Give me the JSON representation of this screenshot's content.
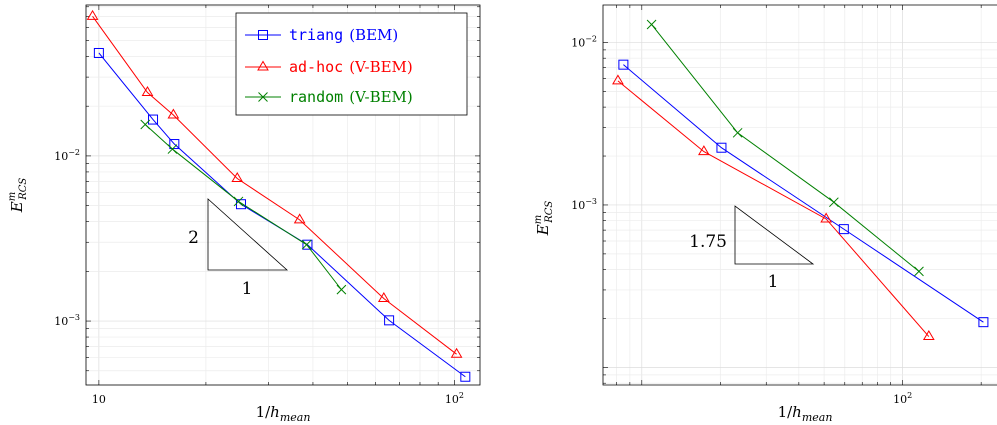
{
  "chart_data": [
    {
      "type": "line",
      "xscale": "log",
      "yscale": "log",
      "xlabel": "1/h_mean",
      "ylabel": "E^m_RCS",
      "xlim": [
        9.2,
        118
      ],
      "ylim": [
        0.00041,
        0.082
      ],
      "grid": true,
      "legend_position": "top-right",
      "x_tick_labels": [
        {
          "value": 10,
          "label": "10"
        },
        {
          "value": 100,
          "label": "10^2"
        }
      ],
      "y_tick_labels": [
        {
          "value": 0.01,
          "label": "10^-2"
        },
        {
          "value": 0.001,
          "label": "10^-3"
        }
      ],
      "series": [
        {
          "name": "triang",
          "name_suffix": "(BEM)",
          "color": "#0000ff",
          "marker": "square",
          "points": [
            [
              10,
              0.042
            ],
            [
              14.2,
              0.0166
            ],
            [
              16.3,
              0.0118
            ],
            [
              25.1,
              0.0051
            ],
            [
              38.6,
              0.0029
            ],
            [
              65.5,
              0.00101
            ],
            [
              107.3,
              0.00046
            ]
          ]
        },
        {
          "name": "ad-hoc",
          "name_suffix": "(V-BEM)",
          "color": "#ff0000",
          "marker": "triangle",
          "points": [
            [
              9.6,
              0.07
            ],
            [
              13.7,
              0.0242
            ],
            [
              16.2,
              0.0177
            ],
            [
              24.5,
              0.0073
            ],
            [
              36.7,
              0.0041
            ],
            [
              63.3,
              0.00137
            ],
            [
              101.4,
              0.00063
            ]
          ]
        },
        {
          "name": "random",
          "name_suffix": "(V-BEM)",
          "color": "#008000",
          "marker": "cross",
          "points": [
            [
              13.5,
              0.0155
            ],
            [
              16.1,
              0.011
            ],
            [
              24.7,
              0.0053
            ],
            [
              38.4,
              0.0029
            ],
            [
              48.1,
              0.00155
            ]
          ]
        }
      ],
      "annotations": [
        {
          "type": "slope-triangle",
          "vertical_label": "2",
          "horizontal_label": "1"
        }
      ]
    },
    {
      "type": "line",
      "xscale": "log",
      "yscale": "log",
      "xlabel": "1/h_mean",
      "ylabel": "E^m_RCS",
      "xlim": [
        7.1,
        230
      ],
      "ylim": [
        7.8e-05,
        0.017
      ],
      "grid": true,
      "x_tick_labels": [
        {
          "value": 100,
          "label": "10^2"
        }
      ],
      "y_tick_labels": [
        {
          "value": 0.01,
          "label": "10^-2"
        },
        {
          "value": 0.001,
          "label": "10^-3"
        }
      ],
      "series": [
        {
          "name": "triang",
          "color": "#0000ff",
          "marker": "square",
          "points": [
            [
              8.5,
              0.0073
            ],
            [
              20.2,
              0.00225
            ],
            [
              59.5,
              0.00071
            ],
            [
              204,
              0.00019
            ]
          ]
        },
        {
          "name": "ad-hoc",
          "color": "#ff0000",
          "marker": "triangle",
          "points": [
            [
              8.1,
              0.0058
            ],
            [
              17.3,
              0.00213
            ],
            [
              50.9,
              0.00082
            ],
            [
              126,
              0.000155
            ]
          ]
        },
        {
          "name": "random",
          "color": "#008000",
          "marker": "cross",
          "points": [
            [
              10.9,
              0.0129
            ],
            [
              23.3,
              0.00278
            ],
            [
              54.5,
              0.00104
            ],
            [
              115.5,
              0.00039
            ]
          ]
        }
      ],
      "annotations": [
        {
          "type": "slope-triangle",
          "vertical_label": "1.75",
          "horizontal_label": "1"
        }
      ]
    }
  ]
}
